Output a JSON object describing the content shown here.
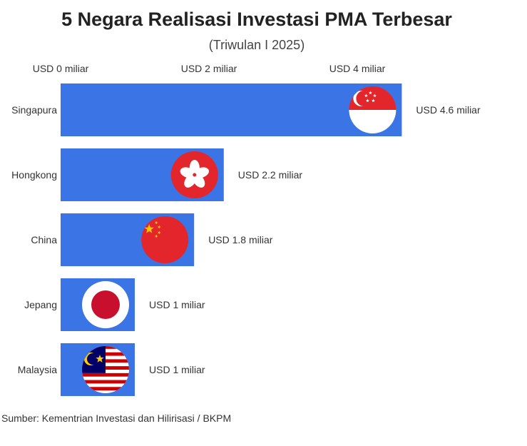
{
  "title": "5 Negara Realisasi Investasi PMA Terbesar",
  "subtitle": "(Triwulan I 2025)",
  "source": "Sumber: Kementrian Investasi dan Hilirisasi / BKPM",
  "colors": {
    "bar": "#3b74e4",
    "red": "#e2262b",
    "white": "#ffffff",
    "navy": "#1a2a6e",
    "gold": "#f7c400"
  },
  "chart_data": {
    "type": "bar",
    "orientation": "horizontal",
    "title": "5 Negara Realisasi Investasi PMA Terbesar",
    "subtitle": "(Triwulan I 2025)",
    "xlabel": "",
    "ylabel": "",
    "xlim": [
      0,
      5
    ],
    "ticks": [
      0,
      2,
      4
    ],
    "tick_labels": [
      "USD 0 miliar",
      "USD 2 miliar",
      "USD 4 miliar"
    ],
    "grid": false,
    "categories": [
      "Singapura",
      "Hongkong",
      "China",
      "Jepang",
      "Malaysia"
    ],
    "values": [
      4.6,
      2.2,
      1.8,
      1,
      1
    ],
    "value_labels": [
      "USD 4.6 miliar",
      "USD 2.2 miliar",
      "USD 1.8 miliar",
      "USD 1 miliar",
      "USD 1 miliar"
    ],
    "flags": [
      "singapore-flag-icon",
      "hong-kong-flag-icon",
      "china-flag-icon",
      "japan-flag-icon",
      "malaysia-flag-icon"
    ]
  }
}
